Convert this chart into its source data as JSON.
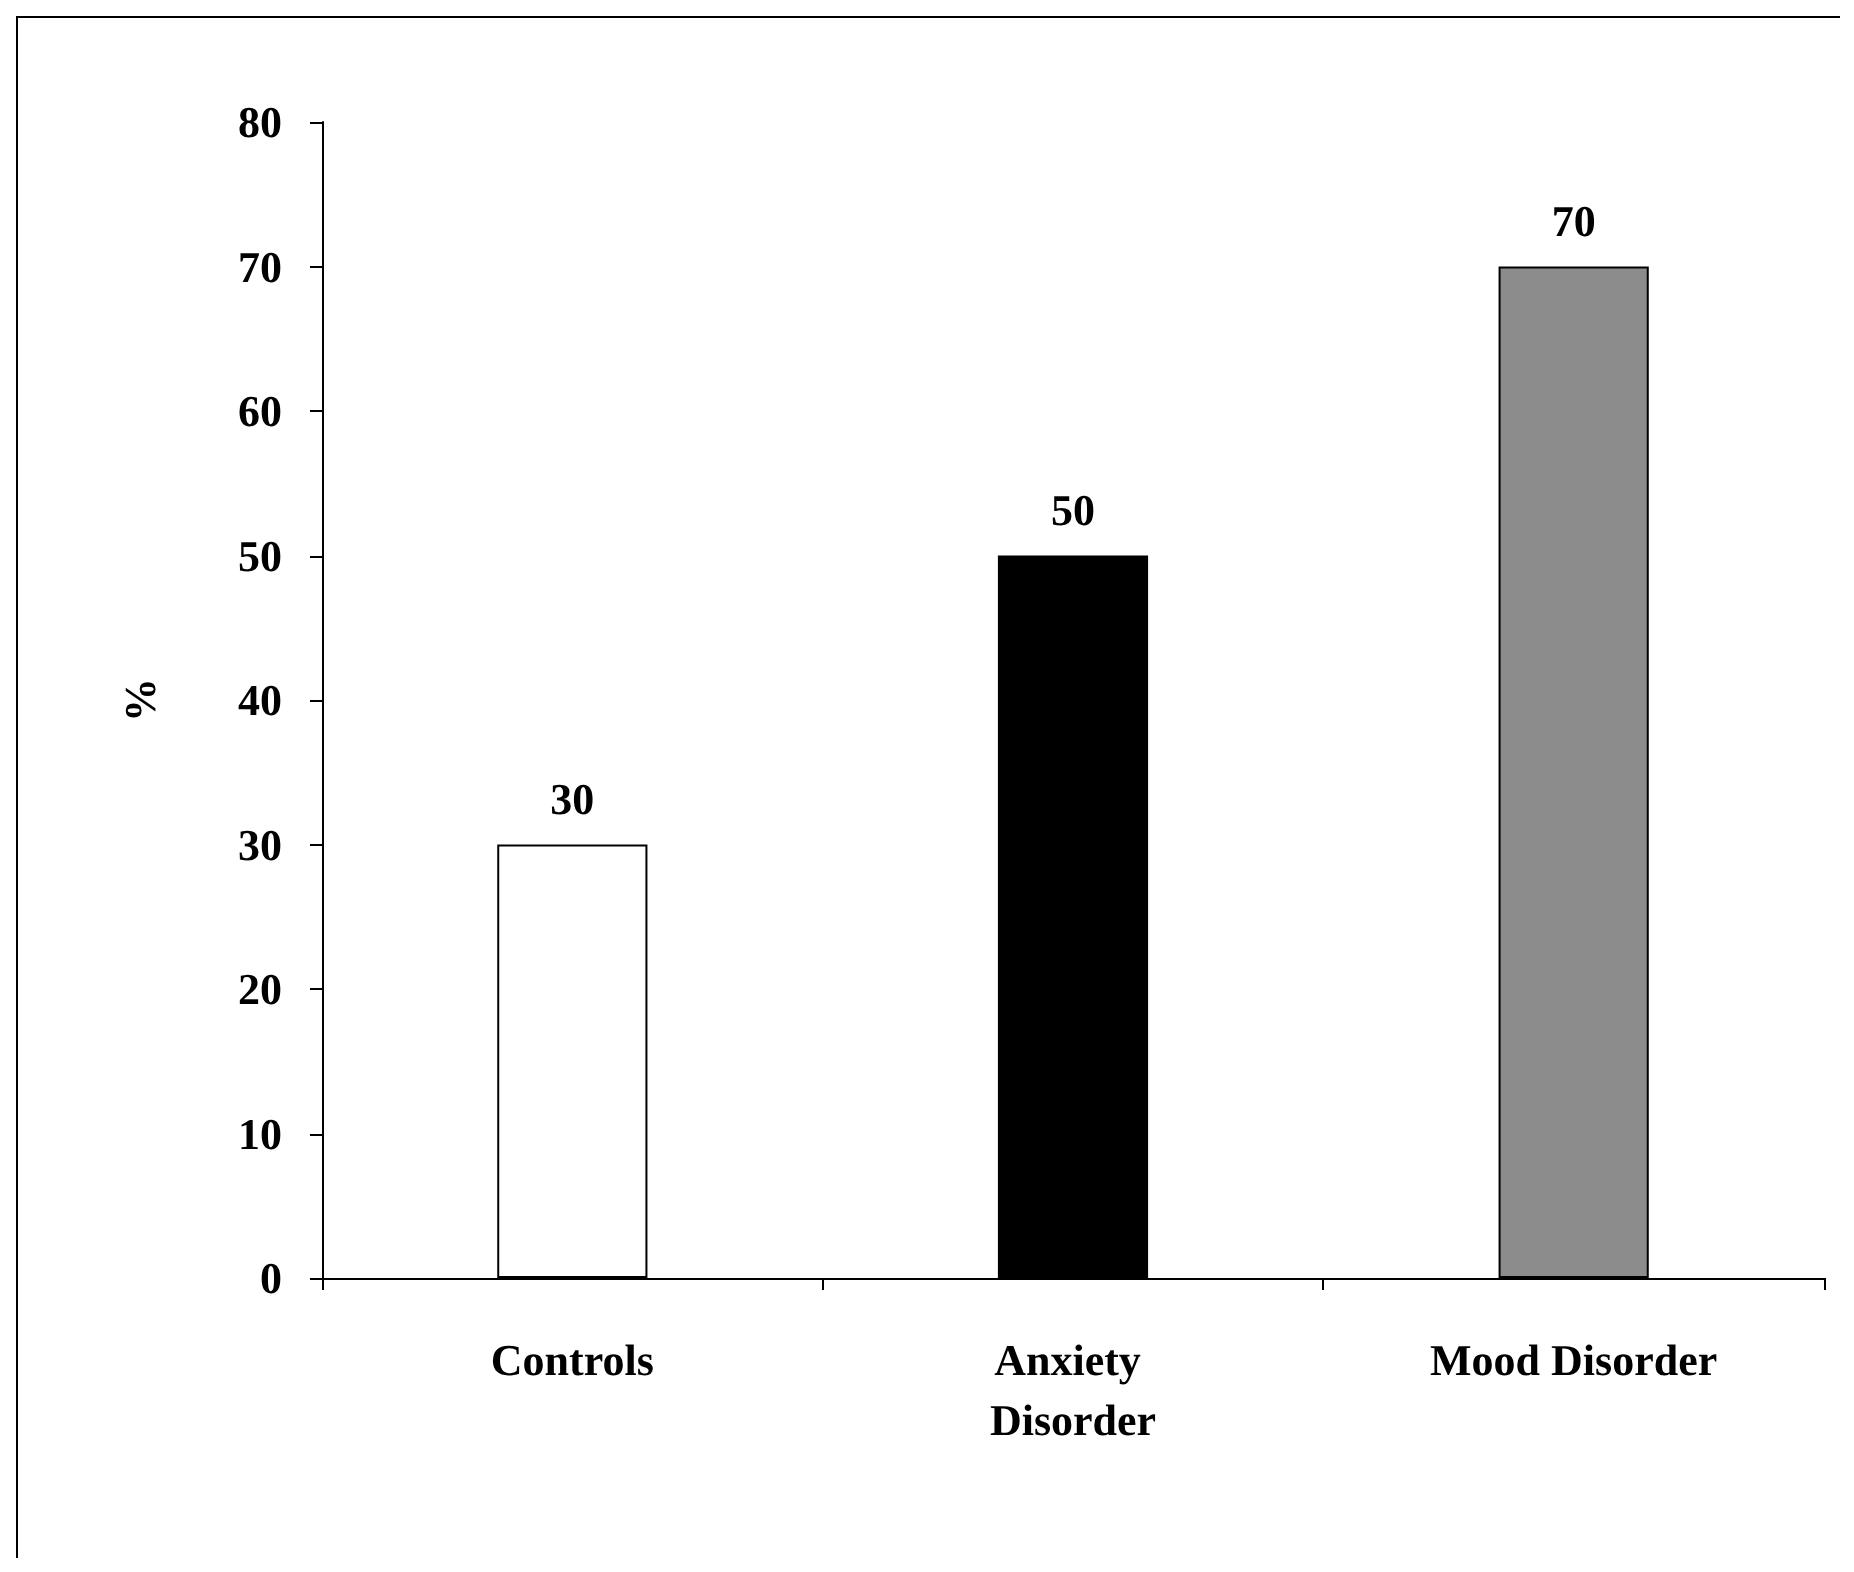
{
  "chart_data": {
    "type": "bar",
    "ylabel": "%",
    "categories": [
      "Controls",
      "Anxiety Disorder",
      "Mood Disorder"
    ],
    "values": [
      30,
      50,
      70
    ],
    "colors": [
      "#ffffff",
      "#000000",
      "#8c8c8c"
    ],
    "ylim": [
      0,
      80
    ],
    "yticks": [
      0,
      10,
      20,
      30,
      40,
      50,
      60,
      70,
      80
    ],
    "grid": false,
    "data_labels": true
  }
}
